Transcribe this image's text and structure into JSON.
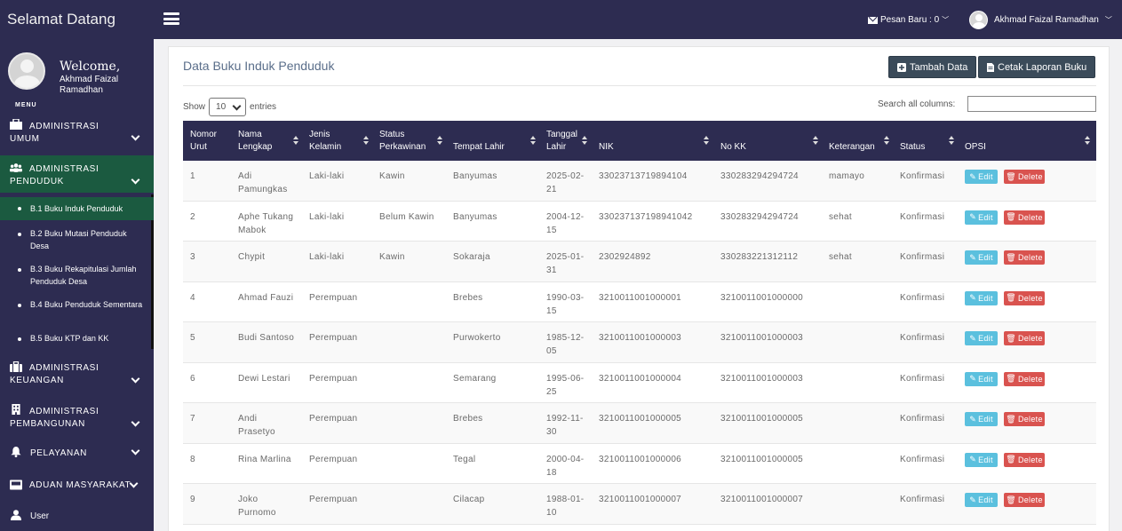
{
  "header": {
    "brand": "Selamat Datang",
    "messages": "Pesan Baru : 0",
    "user": "Akhmad Faizal Ramadhan"
  },
  "sidebar": {
    "welcome": "Welcome,",
    "username": "Akhmad Faizal Ramadhan",
    "menu_label": "MENU",
    "items": [
      {
        "label1": "ADMINISTRASI",
        "label2": "UMUM",
        "icon": "briefcase-icon"
      },
      {
        "label1": "ADMINISTRASI",
        "label2": "PENDUDUK",
        "icon": "users-icon"
      },
      {
        "label1": "ADMINISTRASI",
        "label2": "KEUANGAN",
        "icon": "suitcase-icon"
      },
      {
        "label1": "ADMINISTRASI",
        "label2": "PEMBANGUNAN",
        "icon": "building-icon"
      },
      {
        "label1": "PELAYANAN",
        "label2": "",
        "icon": "bell-icon"
      },
      {
        "label1": "ADUAN MASYARAKAT",
        "label2": "",
        "icon": "inbox-icon"
      },
      {
        "label1": "User",
        "label2": "",
        "icon": "user-icon"
      }
    ],
    "subitems": [
      "B.1 Buku Induk Penduduk",
      "B.2 Buku Mutasi Penduduk Desa",
      "B.3 Buku Rekapitulasi Jumlah Penduduk Desa",
      "B.4 Buku Penduduk Sementara",
      "B.5 Buku KTP dan KK"
    ],
    "active_color": "#1b5a40"
  },
  "main": {
    "title": "Data Buku Induk Penduduk",
    "add_button": "Tambah Data",
    "print_button": "Cetak Laporan Buku",
    "show_label": "Show",
    "entries_value": "10",
    "entries_label": "entries",
    "search_label": "Search all columns:",
    "search_value": ""
  },
  "table": {
    "headers": [
      [
        "Nomor",
        "Urut"
      ],
      [
        "Nama",
        "Lengkap"
      ],
      [
        "Jenis",
        "Kelamin"
      ],
      [
        "Status",
        "Perkawinan"
      ],
      [
        "Tempat Lahir",
        ""
      ],
      [
        "Tanggal",
        "Lahir"
      ],
      [
        "NIK",
        ""
      ],
      [
        "No KK",
        ""
      ],
      [
        "Keterangan",
        ""
      ],
      [
        "Status",
        ""
      ],
      [
        "OPSI",
        ""
      ]
    ],
    "edit_label": "Edit",
    "delete_label": "Delete",
    "rows": [
      {
        "no": "1",
        "nama": [
          "Adi",
          "Pamungkas"
        ],
        "jk": "Laki-laki",
        "kawin": "Kawin",
        "tempat": "Banyumas",
        "tgl": [
          "2025-02-",
          "21"
        ],
        "nik": "33023713719894104",
        "kk": "330283294294724",
        "ket": "mamayo",
        "status": "Konfirmasi"
      },
      {
        "no": "2",
        "nama": [
          "Aphe Tukang",
          "Mabok"
        ],
        "jk": "Laki-laki",
        "kawin": "Belum Kawin",
        "tempat": "Banyumas",
        "tgl": [
          "2004-12-",
          "15"
        ],
        "nik": "330237137198941042",
        "kk": "330283294294724",
        "ket": "sehat",
        "status": "Konfirmasi"
      },
      {
        "no": "3",
        "nama": [
          "Chypit",
          ""
        ],
        "jk": "Laki-laki",
        "kawin": "Kawin",
        "tempat": "Sokaraja",
        "tgl": [
          "2025-01-",
          "31"
        ],
        "nik": "2302924892",
        "kk": "330283221312112",
        "ket": "sehat",
        "status": "Konfirmasi"
      },
      {
        "no": "4",
        "nama": [
          "Ahmad Fauzi",
          ""
        ],
        "jk": "Perempuan",
        "kawin": "",
        "tempat": "Brebes",
        "tgl": [
          "1990-03-",
          "15"
        ],
        "nik": "3210011001000001",
        "kk": "3210011001000000",
        "ket": "",
        "status": "Konfirmasi"
      },
      {
        "no": "5",
        "nama": [
          "Budi Santoso",
          ""
        ],
        "jk": "Perempuan",
        "kawin": "",
        "tempat": "Purwokerto",
        "tgl": [
          "1985-12-",
          "05"
        ],
        "nik": "3210011001000003",
        "kk": "3210011001000003",
        "ket": "",
        "status": "Konfirmasi"
      },
      {
        "no": "6",
        "nama": [
          "Dewi Lestari",
          ""
        ],
        "jk": "Perempuan",
        "kawin": "",
        "tempat": "Semarang",
        "tgl": [
          "1995-06-",
          "25"
        ],
        "nik": "3210011001000004",
        "kk": "3210011001000003",
        "ket": "",
        "status": "Konfirmasi"
      },
      {
        "no": "7",
        "nama": [
          "Andi",
          "Prasetyo"
        ],
        "jk": "Perempuan",
        "kawin": "",
        "tempat": "Brebes",
        "tgl": [
          "1992-11-",
          "30"
        ],
        "nik": "3210011001000005",
        "kk": "3210011001000005",
        "ket": "",
        "status": "Konfirmasi"
      },
      {
        "no": "8",
        "nama": [
          "Rina Marlina",
          ""
        ],
        "jk": "Perempuan",
        "kawin": "",
        "tempat": "Tegal",
        "tgl": [
          "2000-04-",
          "18"
        ],
        "nik": "3210011001000006",
        "kk": "3210011001000005",
        "ket": "",
        "status": "Konfirmasi"
      },
      {
        "no": "9",
        "nama": [
          "Joko",
          "Purnomo"
        ],
        "jk": "Perempuan",
        "kawin": "",
        "tempat": "Cilacap",
        "tgl": [
          "1988-01-",
          "10"
        ],
        "nik": "3210011001000007",
        "kk": "3210011001000007",
        "ket": "",
        "status": "Konfirmasi"
      }
    ]
  }
}
